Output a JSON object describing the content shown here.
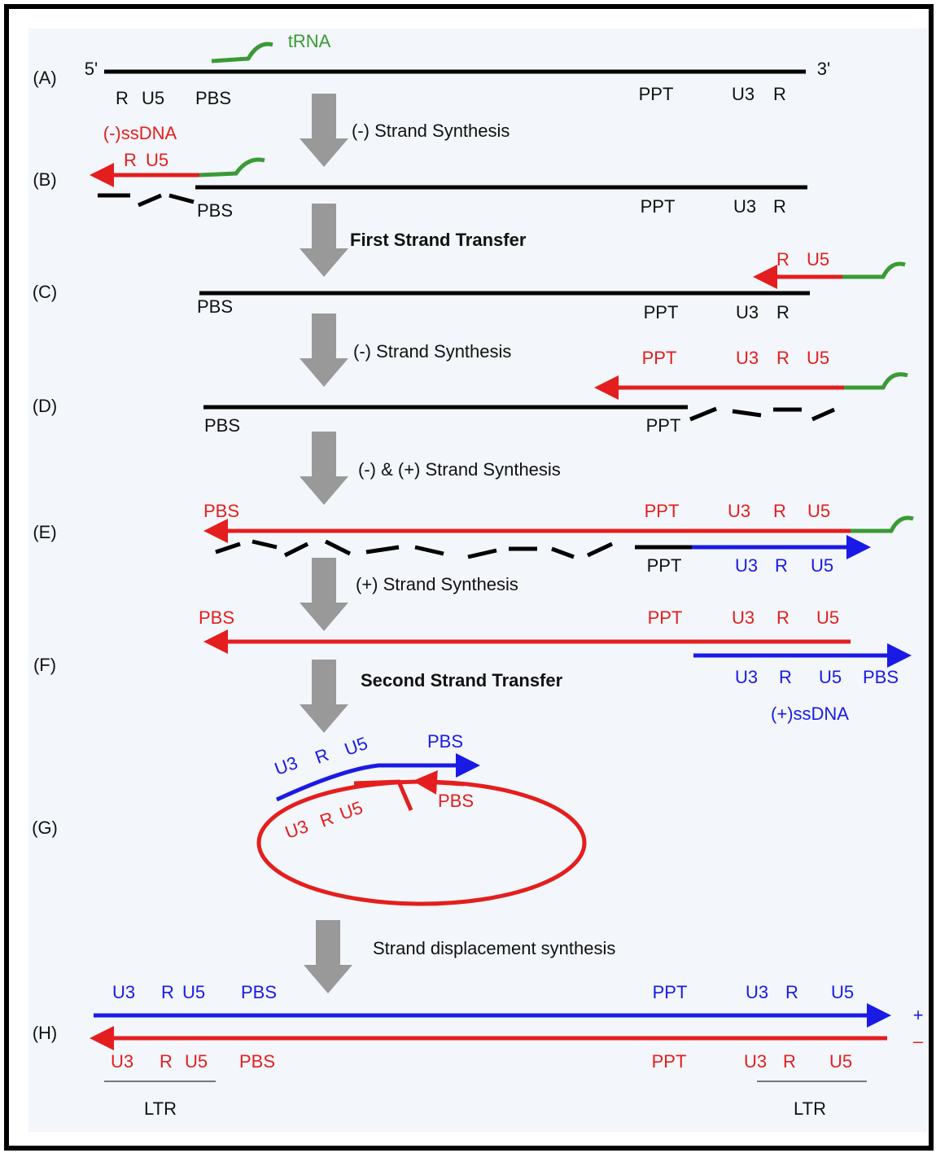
{
  "rows": [
    "(A)",
    "(B)",
    "(C)",
    "(D)",
    "(E)",
    "(F)",
    "(G)",
    "(H)"
  ],
  "steps": [
    "(-) Strand Synthesis",
    "First Strand Transfer",
    "(-) Strand Synthesis",
    "(-) & (+) Strand Synthesis",
    "(+) Strand Synthesis",
    "Second Strand Transfer",
    "Strand displacement synthesis"
  ],
  "panel_a": {
    "five_prime": "5'",
    "three_prime": "3'",
    "trna": "tRNA",
    "labels": [
      "R",
      "U5",
      "PBS",
      "PPT",
      "U3",
      "R"
    ]
  },
  "panel_b": {
    "ssdna": "(-)ssDNA",
    "red_labels": [
      "R",
      "U5"
    ],
    "labels": [
      "PBS",
      "PPT",
      "U3",
      "R"
    ]
  },
  "panel_c": {
    "red_labels": [
      "R",
      "U5"
    ],
    "labels": [
      "PBS",
      "PPT",
      "U3",
      "R"
    ]
  },
  "panel_d": {
    "red_labels": [
      "PPT",
      "U3",
      "R",
      "U5"
    ],
    "labels": [
      "PBS",
      "PPT"
    ]
  },
  "panel_e": {
    "red_labels": [
      "PBS",
      "PPT",
      "U3",
      "R",
      "U5"
    ],
    "lower_labels": [
      "PPT",
      "U3",
      "R",
      "U5"
    ]
  },
  "panel_f": {
    "red_labels": [
      "PBS",
      "PPT",
      "U3",
      "R",
      "U5"
    ],
    "blue_labels": [
      "U3",
      "R",
      "U5",
      "PBS"
    ],
    "ssdna": "(+)ssDNA"
  },
  "panel_g": {
    "blue_labels": [
      "U3",
      "R",
      "U5",
      "PBS"
    ],
    "red_labels": [
      "U3",
      "R",
      "U5",
      "PBS"
    ]
  },
  "panel_h": {
    "plus": "+",
    "minus": "–",
    "blue_labels": [
      "U3",
      "R",
      "U5",
      "PBS",
      "PPT",
      "U3",
      "R",
      "U5"
    ],
    "red_labels": [
      "U3",
      "R",
      "U5",
      "PBS",
      "PPT",
      "U3",
      "R",
      "U5"
    ],
    "ltr": [
      "LTR",
      "LTR"
    ]
  }
}
